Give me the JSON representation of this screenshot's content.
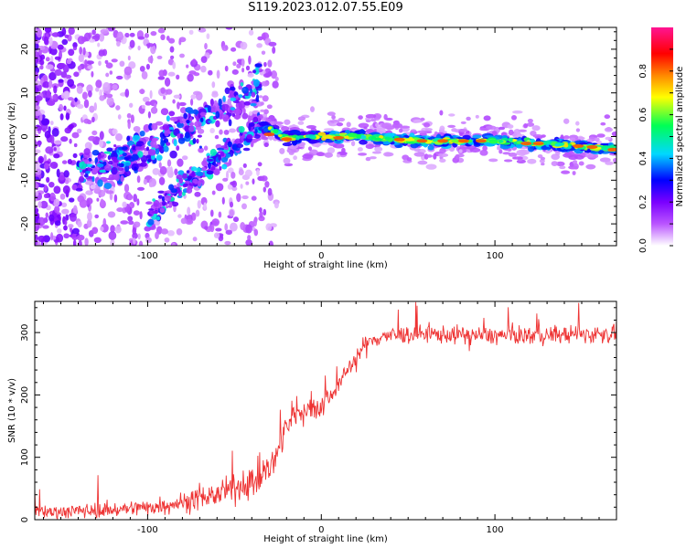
{
  "title": "S119.2023.012.07.55.E09",
  "chart_data": [
    {
      "type": "heatmap",
      "xlabel": "Height of straight line (km)",
      "ylabel": "Frequency (Hz)",
      "xlim": [
        -165,
        170
      ],
      "ylim": [
        -25,
        25
      ],
      "x_ticks": [
        -100,
        0,
        100
      ],
      "y_ticks": [
        -20,
        -10,
        0,
        10,
        20
      ],
      "colorbar": {
        "label": "Normalized spectral amplitude",
        "range": [
          0,
          1
        ],
        "ticks": [
          0.0,
          0.2,
          0.4,
          0.6,
          0.8
        ],
        "colors": [
          "#ffffff",
          "#ba55ff",
          "#7a00ff",
          "#0000ff",
          "#00d8ff",
          "#00ff55",
          "#ffff00",
          "#ff8800",
          "#ff0000",
          "#ff1493"
        ]
      },
      "ridge_upper": {
        "x": [
          -140,
          -120,
          -100,
          -90,
          -80,
          -75,
          -60,
          -45,
          -35
        ],
        "y": [
          -8,
          -6,
          -3,
          0,
          2,
          3,
          5,
          9,
          13
        ]
      },
      "ridge_lower": {
        "x": [
          -100,
          -90,
          -80,
          -70,
          -60,
          -50,
          -42,
          -35
        ],
        "y": [
          -17,
          -15,
          -11,
          -9,
          -5,
          -2,
          0,
          3
        ]
      },
      "ridge_main": {
        "x": [
          -35,
          -20,
          0,
          20,
          40,
          60,
          80,
          100,
          120,
          140,
          160,
          170
        ],
        "y": [
          3,
          -0.5,
          0,
          0,
          -0.5,
          -1,
          -1,
          -1,
          -1.5,
          -2,
          -2.5,
          -3
        ]
      }
    },
    {
      "type": "line",
      "xlabel": "Height of straight line (km)",
      "ylabel": "SNR (10 * v/v)",
      "xlim": [
        -165,
        170
      ],
      "ylim": [
        0,
        350
      ],
      "x_ticks": [
        -100,
        0,
        100
      ],
      "y_ticks": [
        0,
        100,
        200,
        300
      ],
      "line_color": "#ee3333",
      "trend": {
        "x": [
          -165,
          -140,
          -120,
          -100,
          -80,
          -60,
          -45,
          -35,
          -28,
          -22,
          -18,
          -10,
          -5,
          5,
          15,
          25,
          35,
          40,
          50,
          70,
          100,
          130,
          170
        ],
        "y": [
          12,
          14,
          16,
          20,
          28,
          40,
          55,
          70,
          90,
          130,
          160,
          180,
          175,
          195,
          240,
          280,
          295,
          295,
          297,
          297,
          295,
          296,
          298
        ]
      }
    }
  ]
}
